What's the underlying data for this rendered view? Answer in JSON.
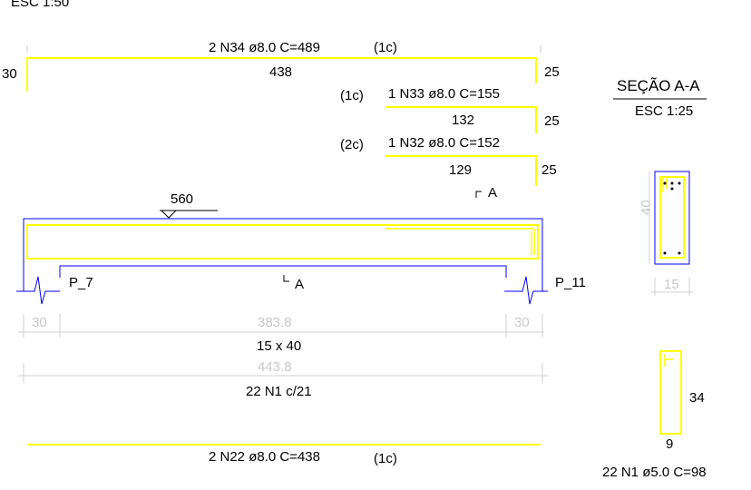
{
  "colors": {
    "bar": "#ffff00",
    "beam": "#0000ff",
    "text": "#000000",
    "dim_text": "#c8c8c8",
    "dim_line": "#d0d0d0"
  },
  "header": {
    "scale": "ESC 1:50"
  },
  "bar_n34": {
    "label": "2 N34 ø8.0  C=489",
    "layer": "(1c)",
    "length": "438",
    "hook_left": "30",
    "hook_right": "25"
  },
  "bar_n33": {
    "layer": "(1c)",
    "label": "1 N33 ø8.0  C=155",
    "length": "132",
    "hook": "25"
  },
  "bar_n32": {
    "layer": "(2c)",
    "label": "1 N32 ø8.0  C=152",
    "length": "129",
    "hook": "25"
  },
  "beam": {
    "level": "560",
    "section_mark_top": "A",
    "section_mark_bottom": "A",
    "support_left": "P_7",
    "support_right": "P_11"
  },
  "dimensions": {
    "left_support": "30",
    "span": "383.8",
    "right_support": "30",
    "section_size": "15 x 40",
    "total": "443.8",
    "stirrups": "22 N1 c/21"
  },
  "bar_n22": {
    "label": "2 N22 ø8.0  C=438",
    "layer": "(1c)"
  },
  "section": {
    "title": "SEÇÃO A-A",
    "scale": "ESC 1:25",
    "height": "40",
    "width": "15"
  },
  "stirrup": {
    "height": "34",
    "width": "9",
    "label": "22 N1 ø5.0  C=98"
  }
}
